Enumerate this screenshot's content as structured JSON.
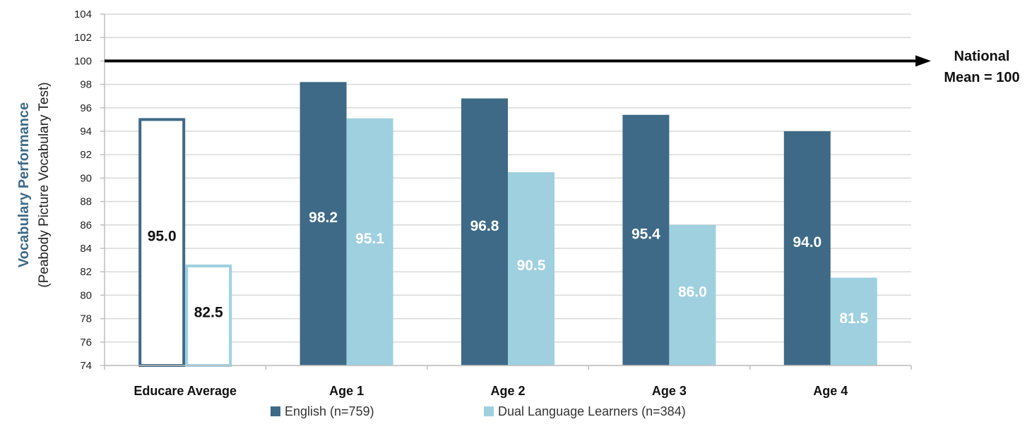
{
  "chart_data": {
    "type": "bar",
    "title": "",
    "ylabel_main": "Vocabulary Performance",
    "ylabel_sub": "(Peabody Picture Vocabulary Test)",
    "xlabel": "",
    "ylim": [
      74,
      104
    ],
    "ytick_step": 2,
    "grid": true,
    "categories": [
      "Educare Average",
      "Age 1",
      "Age 2",
      "Age 3",
      "Age 4"
    ],
    "series": [
      {
        "name": "English (n=759)",
        "values": [
          95.0,
          98.2,
          96.8,
          95.4,
          94.0
        ],
        "labels": [
          "95.0",
          "98.2",
          "96.8",
          "95.4",
          "94.0"
        ]
      },
      {
        "name": "Dual Language Learners (n=384)",
        "values": [
          82.5,
          95.1,
          90.5,
          86.0,
          81.5
        ],
        "labels": [
          "82.5",
          "95.1",
          "90.5",
          "86.0",
          "81.5"
        ]
      }
    ],
    "outlined_categories": [
      "Educare Average"
    ],
    "reference_line": {
      "value": 100,
      "label_line1": "National",
      "label_line2": "Mean = 100"
    },
    "legend_position": "bottom",
    "colors": {
      "english": "#3e6a87",
      "dll": "#9fd0e0",
      "grid": "#d9d9d9",
      "axis": "#bfbfbf",
      "ylabel_main": "#3e6a87",
      "reference": "#000000"
    }
  }
}
